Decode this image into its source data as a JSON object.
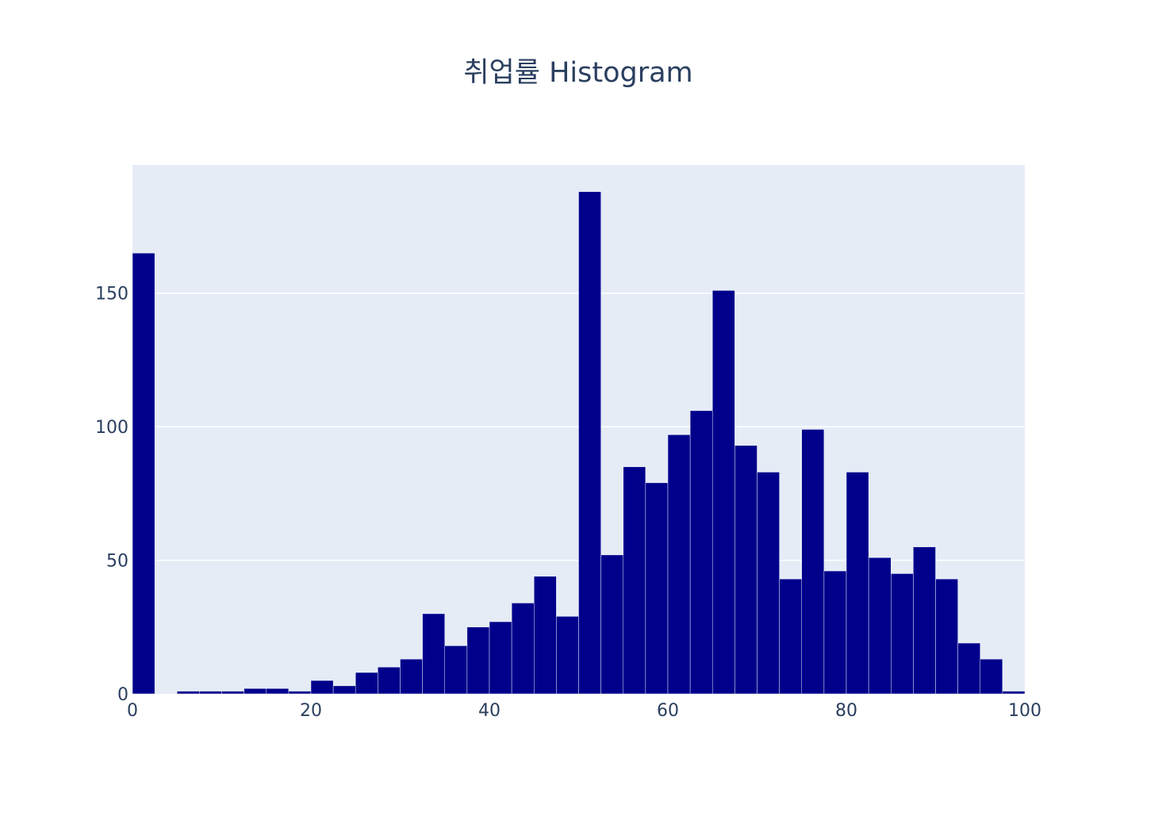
{
  "chart_data": {
    "type": "histogram",
    "title": "취업률 Histogram",
    "xlabel": "",
    "ylabel": "",
    "bin_width": 2.5,
    "bin_starts": [
      0,
      2.5,
      5,
      7.5,
      10,
      12.5,
      15,
      17.5,
      20,
      22.5,
      25,
      27.5,
      30,
      32.5,
      35,
      37.5,
      40,
      42.5,
      45,
      47.5,
      50,
      52.5,
      55,
      57.5,
      60,
      62.5,
      65,
      67.5,
      70,
      72.5,
      75,
      77.5,
      80,
      82.5,
      85,
      87.5,
      90,
      92.5,
      95,
      97.5
    ],
    "counts": [
      165,
      0,
      1,
      1,
      1,
      2,
      2,
      1,
      5,
      3,
      8,
      10,
      13,
      30,
      18,
      25,
      27,
      34,
      44,
      29,
      188,
      52,
      85,
      79,
      97,
      106,
      151,
      93,
      83,
      43,
      99,
      46,
      83,
      51,
      45,
      55,
      43,
      19,
      13,
      1
    ],
    "xlim": [
      0,
      100
    ],
    "ylim": [
      0,
      198
    ],
    "x_ticks": [
      0,
      20,
      40,
      60,
      80,
      100
    ],
    "y_ticks": [
      0,
      50,
      100,
      150
    ],
    "grid": true,
    "colors": {
      "bar": "#00008b",
      "plot_background": "#e5ecf6",
      "gridline": "#ffffff",
      "text": "#2a3f5f"
    }
  }
}
